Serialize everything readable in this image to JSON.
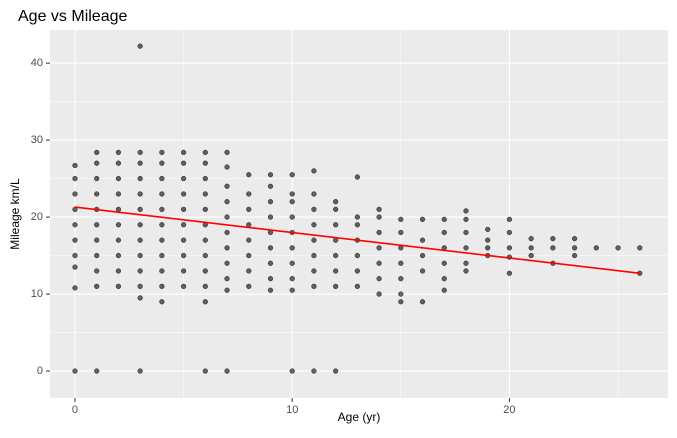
{
  "chart_data": {
    "type": "scatter",
    "title": "Age vs Mileage",
    "x_label": "Age (yr)",
    "y_label": "Mileage km/L",
    "x": [
      0,
      0,
      0,
      0,
      0,
      0,
      0,
      0,
      0,
      0,
      1,
      1,
      1,
      1,
      1,
      1,
      1,
      1,
      1,
      1,
      1,
      2,
      2,
      2,
      2,
      2,
      2,
      2,
      2,
      2,
      2,
      3,
      3,
      3,
      3,
      3,
      3,
      3,
      3,
      3,
      3,
      3,
      3,
      3,
      4,
      4,
      4,
      4,
      4,
      4,
      4,
      4,
      4,
      4,
      4,
      5,
      5,
      5,
      5,
      5,
      5,
      5,
      5,
      5,
      5,
      6,
      6,
      6,
      6,
      6,
      6,
      6,
      6,
      6,
      6,
      6,
      6,
      7,
      7,
      7,
      7,
      7,
      7,
      7,
      7,
      7,
      7,
      7,
      8,
      8,
      8,
      8,
      8,
      8,
      8,
      8,
      9,
      9,
      9,
      9,
      9,
      9,
      9,
      9,
      9,
      10,
      10,
      10,
      10,
      10,
      10,
      10,
      10,
      10,
      10,
      11,
      11,
      11,
      11,
      11,
      11,
      11,
      11,
      11,
      12,
      12,
      12,
      12,
      12,
      12,
      12,
      12,
      13,
      13,
      13,
      13,
      13,
      13,
      13,
      14,
      14,
      14,
      14,
      14,
      14,
      14,
      15,
      15,
      15,
      15,
      15,
      15,
      15,
      16,
      16,
      16,
      16,
      16,
      17,
      17,
      17,
      17,
      17,
      17,
      18,
      18,
      18,
      18,
      18,
      18,
      19,
      19,
      19,
      19,
      20,
      20,
      20,
      20,
      20,
      21,
      21,
      21,
      22,
      22,
      22,
      23,
      23,
      23,
      24,
      25,
      26,
      26
    ],
    "values": [
      0,
      10.8,
      13.5,
      15,
      17,
      19,
      21,
      23,
      25,
      26.7,
      0,
      11,
      13,
      15,
      17,
      19,
      21,
      23,
      25,
      27,
      28.4,
      11,
      13,
      15,
      17,
      19,
      21,
      23,
      25,
      27,
      28.4,
      0,
      9.5,
      11,
      13,
      15,
      17,
      19,
      21,
      23,
      25,
      27,
      28.4,
      42.2,
      9,
      11,
      13,
      15,
      17,
      19,
      21,
      23,
      25,
      27,
      28.4,
      11,
      13,
      15,
      17,
      19,
      21,
      23,
      25,
      27,
      28.4,
      0,
      9,
      11,
      13,
      15,
      17,
      19,
      21,
      23,
      25,
      27,
      28.4,
      0,
      10.5,
      12,
      14,
      16,
      18,
      20,
      22,
      24,
      26.5,
      28.4,
      11,
      13,
      15,
      17,
      19,
      21,
      23,
      25.5,
      10.5,
      12,
      14,
      16,
      18,
      20,
      22,
      24,
      25.5,
      0,
      10.5,
      12,
      14,
      16,
      18,
      20,
      22,
      23,
      25.5,
      0,
      11,
      13,
      15,
      17,
      19,
      21,
      23,
      26,
      0,
      11,
      13,
      15,
      17,
      19,
      21,
      22,
      11,
      13,
      15,
      17,
      19,
      20,
      25.2,
      10,
      12,
      14,
      16,
      18,
      20,
      21,
      9,
      10,
      12,
      14,
      16,
      18,
      19.7,
      9,
      13,
      15,
      17,
      19.7,
      10.5,
      12,
      14,
      16,
      18,
      19.7,
      13,
      14,
      16,
      18,
      19.7,
      20.8,
      15,
      16,
      17,
      18.4,
      12.7,
      14.8,
      16,
      18,
      19.7,
      15,
      16,
      17.2,
      14,
      16,
      17.2,
      15,
      16,
      17.2,
      16,
      16,
      12.7,
      16
    ],
    "color": "#000000",
    "trend_line": {
      "x": [
        0,
        26
      ],
      "values": [
        21.3,
        12.7
      ],
      "color": "#ff0000"
    },
    "xlim": [
      -1.15,
      27.3
    ],
    "ylim": [
      -3.5,
      44.3
    ],
    "xticks": [
      0,
      10,
      20
    ],
    "yticks": [
      0,
      10,
      20,
      30,
      40
    ],
    "grid": true
  }
}
